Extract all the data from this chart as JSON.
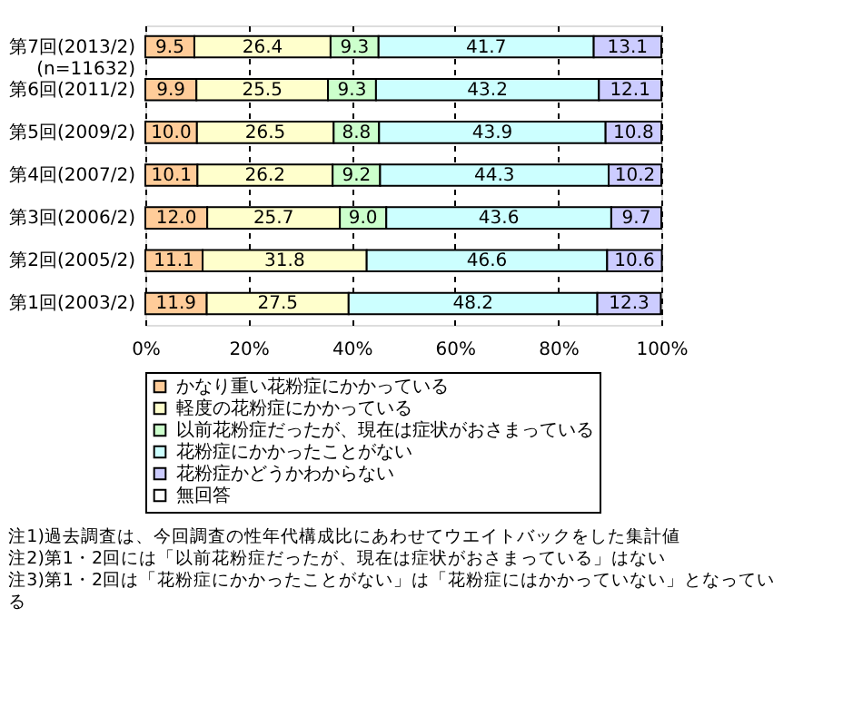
{
  "chart_data": {
    "type": "bar",
    "orientation": "horizontal",
    "stacked": true,
    "categories": [
      "第7回(2013/2)\n(n=11632)",
      "第6回(2011/2)",
      "第5回(2009/2)",
      "第4回(2007/2)",
      "第3回(2006/2)",
      "第2回(2005/2)",
      "第1回(2003/2)"
    ],
    "series": [
      {
        "name": "かなり重い花粉症にかかっている",
        "color": "#ffcc99",
        "values": [
          9.5,
          9.9,
          10.0,
          10.1,
          12.0,
          11.1,
          11.9
        ],
        "value_labels": [
          "9.5",
          "9.9",
          "10.0",
          "10.1",
          "12.0",
          "11.1",
          "11.9"
        ]
      },
      {
        "name": "軽度の花粉症にかかっている",
        "color": "#ffffcc",
        "values": [
          26.4,
          25.5,
          26.5,
          26.2,
          25.7,
          31.8,
          27.5
        ],
        "value_labels": [
          "26.4",
          "25.5",
          "26.5",
          "26.2",
          "25.7",
          "31.8",
          "27.5"
        ]
      },
      {
        "name": "以前花粉症だったが、現在は症状がおさまっている",
        "color": "#ccffcc",
        "values": [
          9.3,
          9.3,
          8.8,
          9.2,
          9.0,
          null,
          null
        ],
        "value_labels": [
          "9.3",
          "9.3",
          "8.8",
          "9.2",
          "9.0",
          null,
          null
        ]
      },
      {
        "name": "花粉症にかかったことがない",
        "color": "#ccffff",
        "values": [
          41.7,
          43.2,
          43.9,
          44.3,
          43.6,
          46.6,
          48.2
        ],
        "value_labels": [
          "41.7",
          "43.2",
          "43.9",
          "44.3",
          "43.6",
          "46.6",
          "48.2"
        ]
      },
      {
        "name": "花粉症かどうかわからない",
        "color": "#ccccff",
        "values": [
          13.1,
          12.1,
          10.8,
          10.2,
          9.7,
          10.6,
          12.3
        ],
        "value_labels": [
          "13.1",
          "12.1",
          "10.8",
          "10.2",
          "9.7",
          "10.6",
          "12.3"
        ]
      },
      {
        "name": "無回答",
        "color": "#ffffff",
        "values": [
          null,
          null,
          null,
          null,
          null,
          null,
          null
        ]
      }
    ],
    "xlim": [
      0,
      100
    ],
    "xticks": [
      {
        "value": 0,
        "label": "0%"
      },
      {
        "value": 20,
        "label": "20%"
      },
      {
        "value": 40,
        "label": "40%"
      },
      {
        "value": 60,
        "label": "60%"
      },
      {
        "value": 80,
        "label": "80%"
      },
      {
        "value": 100,
        "label": "100%"
      }
    ],
    "grid": "x",
    "legend": "bottom",
    "annotations": [
      "注1)過去調査は、今回調査の性年代構成比にあわせてウエイトバックをした集計値",
      "注2)第1・2回には「以前花粉症だったが、現在は症状がおさまっている」はない",
      "注3)第1・2回は「花粉症にかかったことがない」は「花粉症にはかかっていない」となっている"
    ]
  }
}
